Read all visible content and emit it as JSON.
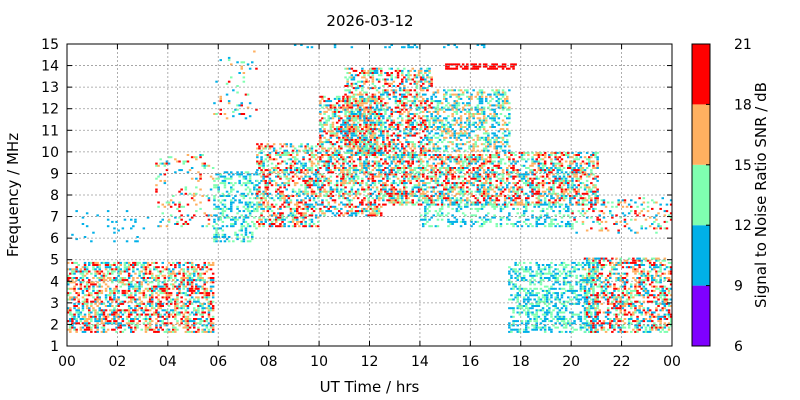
{
  "chart_data": {
    "type": "heatmap",
    "title": "2026-03-12",
    "xlabel": "UT Time / hrs",
    "ylabel": "Frequency / MHz",
    "xlim": [
      0,
      24
    ],
    "ylim": [
      1,
      15
    ],
    "x_ticks": [
      "00",
      "02",
      "04",
      "06",
      "08",
      "10",
      "12",
      "14",
      "16",
      "18",
      "20",
      "22",
      "00"
    ],
    "y_ticks": [
      "1",
      "2",
      "3",
      "4",
      "5",
      "6",
      "7",
      "8",
      "9",
      "10",
      "11",
      "12",
      "13",
      "14",
      "15"
    ],
    "grid": true,
    "colorbar": {
      "label": "Signal to Noise Ratio SNR / dB",
      "ticks": [
        "6",
        "9",
        "12",
        "15",
        "18",
        "21"
      ],
      "bins": [
        {
          "from": 6,
          "to": 9,
          "color": "#7f00ff"
        },
        {
          "from": 9,
          "to": 12,
          "color": "#00b0e8"
        },
        {
          "from": 12,
          "to": 15,
          "color": "#7fffb0"
        },
        {
          "from": 15,
          "to": 18,
          "color": "#ffb060"
        },
        {
          "from": 18,
          "to": 21,
          "color": "#ff0000"
        }
      ]
    },
    "regions": [
      {
        "t0": 0.0,
        "t1": 5.8,
        "f0": 1.6,
        "f1": 4.8,
        "density": 0.55,
        "snr": [
          9,
          21
        ]
      },
      {
        "t0": 0.0,
        "t1": 3.2,
        "f0": 5.8,
        "f1": 7.2,
        "density": 0.05,
        "snr": [
          9,
          12
        ]
      },
      {
        "t0": 3.5,
        "t1": 5.8,
        "f0": 6.5,
        "f1": 9.8,
        "density": 0.12,
        "snr": [
          9,
          21
        ]
      },
      {
        "t0": 5.8,
        "t1": 7.5,
        "f0": 5.8,
        "f1": 9.0,
        "density": 0.35,
        "snr": [
          9,
          15
        ]
      },
      {
        "t0": 5.8,
        "t1": 7.5,
        "f0": 11.5,
        "f1": 14.6,
        "density": 0.08,
        "snr": [
          9,
          21
        ]
      },
      {
        "t0": 7.5,
        "t1": 10.0,
        "f0": 6.5,
        "f1": 10.3,
        "density": 0.5,
        "snr": [
          9,
          21
        ]
      },
      {
        "t0": 10.0,
        "t1": 12.5,
        "f0": 7.0,
        "f1": 12.5,
        "density": 0.55,
        "snr": [
          9,
          21
        ]
      },
      {
        "t0": 11.0,
        "t1": 14.5,
        "f0": 9.8,
        "f1": 13.8,
        "density": 0.5,
        "snr": [
          9,
          21
        ]
      },
      {
        "t0": 12.5,
        "t1": 17.0,
        "f0": 7.5,
        "f1": 9.8,
        "density": 0.6,
        "snr": [
          9,
          21
        ]
      },
      {
        "t0": 14.5,
        "t1": 17.5,
        "f0": 10.0,
        "f1": 12.8,
        "density": 0.45,
        "snr": [
          9,
          18
        ]
      },
      {
        "t0": 15.0,
        "t1": 17.8,
        "f0": 13.8,
        "f1": 14.1,
        "density": 0.6,
        "snr": [
          18,
          21
        ]
      },
      {
        "t0": 17.0,
        "t1": 21.0,
        "f0": 7.5,
        "f1": 9.9,
        "density": 0.55,
        "snr": [
          9,
          21
        ]
      },
      {
        "t0": 14.0,
        "t1": 20.0,
        "f0": 6.5,
        "f1": 7.5,
        "density": 0.3,
        "snr": [
          9,
          15
        ]
      },
      {
        "t0": 17.5,
        "t1": 21.0,
        "f0": 1.6,
        "f1": 4.8,
        "density": 0.45,
        "snr": [
          9,
          15
        ]
      },
      {
        "t0": 20.5,
        "t1": 24.0,
        "f0": 1.6,
        "f1": 5.0,
        "density": 0.5,
        "snr": [
          9,
          21
        ]
      },
      {
        "t0": 20.0,
        "t1": 24.0,
        "f0": 6.2,
        "f1": 7.8,
        "density": 0.2,
        "snr": [
          9,
          21
        ]
      },
      {
        "t0": 9.0,
        "t1": 16.8,
        "f0": 14.8,
        "f1": 15.0,
        "density": 0.15,
        "snr": [
          9,
          12
        ]
      }
    ]
  }
}
